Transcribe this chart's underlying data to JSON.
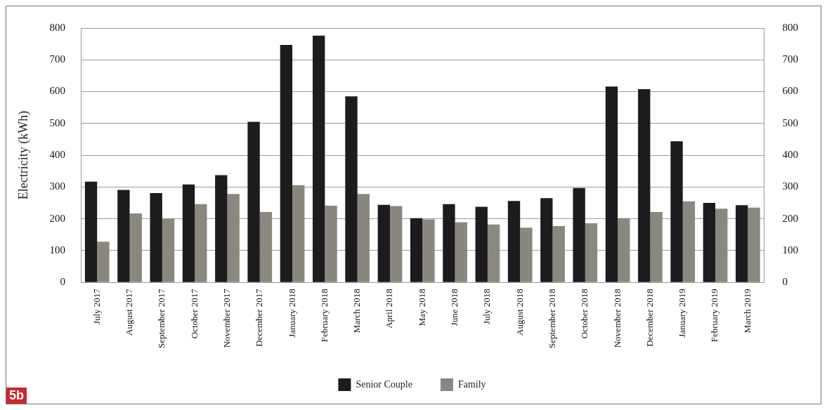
{
  "chart_data": {
    "type": "bar",
    "ylabel": "Electricity (kWh)",
    "categories": [
      "July 2017",
      "August 2017",
      "September 2017",
      "October 2017",
      "November 2017",
      "December 2017",
      "January 2018",
      "February 2018",
      "March 2018",
      "April 2018",
      "May 2018",
      "June 2018",
      "July 2018",
      "August 2018",
      "September 2018",
      "October 2018",
      "November 2018",
      "December 2018",
      "January 2019",
      "February 2019",
      "March 2019"
    ],
    "series": [
      {
        "name": "Senior Couple",
        "color": "#1c1c1e",
        "values": [
          317,
          291,
          281,
          308,
          337,
          505,
          747,
          776,
          585,
          244,
          202,
          246,
          238,
          256,
          265,
          297,
          616,
          608,
          444,
          250,
          243
        ]
      },
      {
        "name": "Family",
        "color": "#8a887e",
        "values": [
          128,
          217,
          200,
          246,
          278,
          221,
          306,
          241,
          278,
          240,
          198,
          189,
          182,
          172,
          177,
          186,
          202,
          221,
          255,
          232,
          235
        ]
      }
    ],
    "ylim": [
      0,
      800
    ],
    "yticks": [
      0,
      100,
      200,
      300,
      400,
      500,
      600,
      700,
      800
    ],
    "y2lim": [
      0,
      800
    ],
    "y2ticks": [
      0,
      100,
      200,
      300,
      400,
      500,
      600,
      700,
      800
    ],
    "grid": "y",
    "legend": "bottom",
    "annotations": [
      "5b"
    ]
  }
}
